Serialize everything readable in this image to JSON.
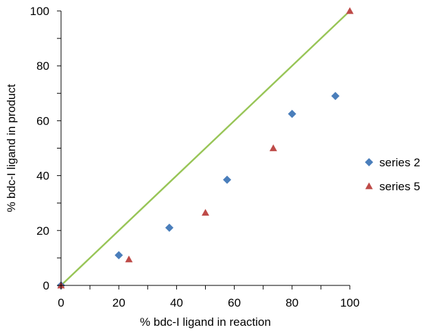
{
  "chart_data": {
    "type": "scatter",
    "xlabel": "% bdc-I ligand in reaction",
    "ylabel": "% bdc-I ligand in product",
    "xlim": [
      0,
      100
    ],
    "ylim": [
      0,
      100
    ],
    "x_ticks": [
      "0",
      "20",
      "40",
      "60",
      "80",
      "100"
    ],
    "y_ticks": [
      "0",
      "20",
      "40",
      "60",
      "80",
      "100"
    ],
    "grid": false,
    "legend_position": "right",
    "series": [
      {
        "name": "series 2",
        "marker": "diamond",
        "color": "#4a7ebb",
        "points": [
          {
            "x": 0,
            "y": 0
          },
          {
            "x": 20,
            "y": 11
          },
          {
            "x": 37.5,
            "y": 21
          },
          {
            "x": 57.5,
            "y": 38.5
          },
          {
            "x": 80,
            "y": 62.5
          },
          {
            "x": 95,
            "y": 69
          }
        ]
      },
      {
        "name": "series 5",
        "marker": "triangle",
        "color": "#be4b48",
        "points": [
          {
            "x": 0,
            "y": 0
          },
          {
            "x": 23.5,
            "y": 9.5
          },
          {
            "x": 50,
            "y": 26.5
          },
          {
            "x": 73.5,
            "y": 50
          },
          {
            "x": 100,
            "y": 100
          }
        ]
      }
    ],
    "reference_line": {
      "color": "#98c557",
      "points": [
        {
          "x": 0,
          "y": 0
        },
        {
          "x": 100,
          "y": 100
        }
      ]
    }
  }
}
